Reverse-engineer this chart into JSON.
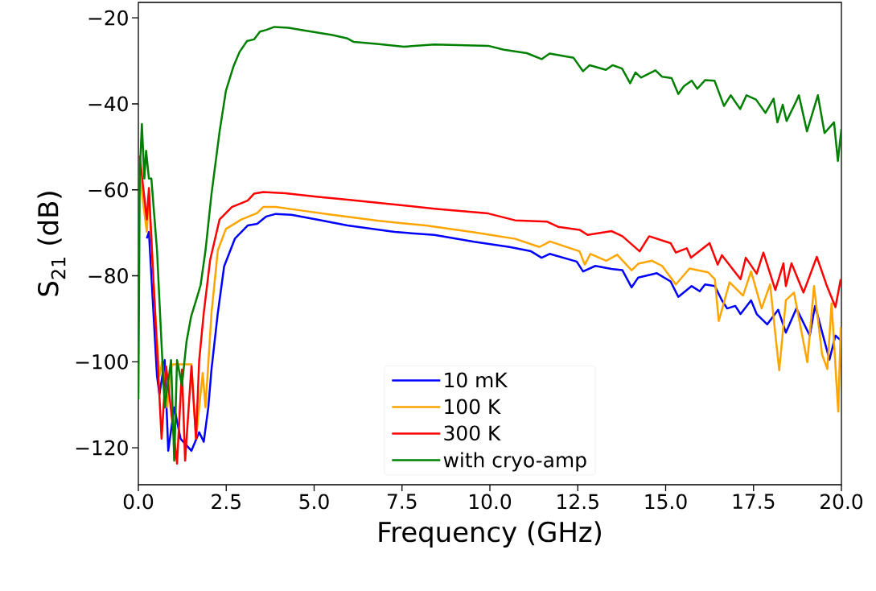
{
  "chart_data": {
    "type": "line",
    "xlabel": "Frequency (GHz)",
    "ylabel": "S$_{21}$ (dB)",
    "xlim": [
      0,
      20
    ],
    "ylim": [
      -128.6,
      -16.4
    ],
    "xticks": [
      {
        "value": 0,
        "label": "0.0"
      },
      {
        "value": 2.5,
        "label": "2.5"
      },
      {
        "value": 5,
        "label": "5.0"
      },
      {
        "value": 7.5,
        "label": "7.5"
      },
      {
        "value": 10,
        "label": "10.0"
      },
      {
        "value": 12.5,
        "label": "12.5"
      },
      {
        "value": 15,
        "label": "15.0"
      },
      {
        "value": 17.5,
        "label": "17.5"
      },
      {
        "value": 20,
        "label": "20.0"
      }
    ],
    "yticks": [
      {
        "value": -120,
        "label": "−120"
      },
      {
        "value": -100,
        "label": "−100"
      },
      {
        "value": -80,
        "label": "−80"
      },
      {
        "value": -60,
        "label": "−60"
      },
      {
        "value": -40,
        "label": "−40"
      },
      {
        "value": -20,
        "label": "−20"
      }
    ],
    "legend": "bottom",
    "line_style": "solid",
    "series": [
      {
        "name": "10 mK",
        "color": "#0000ff",
        "x": [
          0.24,
          0.3,
          0.53,
          0.6,
          0.75,
          0.85,
          1.02,
          1.2,
          1.51,
          1.73,
          1.86,
          1.99,
          2.08,
          2.26,
          2.44,
          2.75,
          3.11,
          3.38,
          3.64,
          3.91,
          4.35,
          5.06,
          5.95,
          7.29,
          8.42,
          9.55,
          10.56,
          11.17,
          11.47,
          11.7,
          12.47,
          12.65,
          13.0,
          13.46,
          13.77,
          14.03,
          14.22,
          14.75,
          15.14,
          15.36,
          15.74,
          15.97,
          16.12,
          16.4,
          16.6,
          16.75,
          16.98,
          17.13,
          17.43,
          17.59,
          17.89,
          18.2,
          18.42,
          18.72,
          19.1,
          19.25,
          19.66,
          19.83,
          19.98
        ],
        "values": [
          -71.3,
          -69.8,
          -103.3,
          -107.6,
          -99.6,
          -120.7,
          -110.6,
          -117.9,
          -120.7,
          -116.4,
          -118.6,
          -110.6,
          -101.8,
          -88.7,
          -77.8,
          -71.3,
          -68.3,
          -67.9,
          -66.2,
          -65.6,
          -65.8,
          -66.9,
          -68.3,
          -69.8,
          -70.5,
          -72.1,
          -73.3,
          -74.3,
          -75.8,
          -74.9,
          -76.7,
          -79,
          -77.7,
          -78.4,
          -78.7,
          -82.7,
          -80.4,
          -79.4,
          -81.3,
          -84.9,
          -82.4,
          -83.6,
          -82,
          -82.4,
          -85.7,
          -87.6,
          -87,
          -88.9,
          -85.7,
          -88.9,
          -91.3,
          -87.9,
          -93.2,
          -87.6,
          -93.9,
          -87,
          -99.5,
          -93.9,
          -95
        ]
      },
      {
        "name": "100 K",
        "color": "#ffa500",
        "x": [
          0.04,
          0.24,
          0.3,
          0.48,
          0.6,
          0.68,
          0.82,
          0.95,
          1.51,
          1.64,
          1.83,
          1.91,
          2.08,
          2.26,
          2.49,
          2.93,
          3.38,
          3.55,
          3.91,
          4.62,
          5.51,
          6.84,
          8.17,
          9.55,
          10.72,
          11.41,
          11.71,
          12.55,
          12.7,
          12.86,
          13.31,
          13.62,
          14.03,
          14.22,
          14.61,
          14.9,
          15.29,
          15.68,
          16.21,
          16.4,
          16.51,
          16.82,
          17.2,
          17.43,
          17.73,
          17.97,
          18.23,
          18.42,
          18.65,
          19.03,
          19.22,
          19.45,
          19.6,
          19.72,
          19.91,
          19.98
        ],
        "values": [
          -56.7,
          -69.8,
          -61,
          -88.7,
          -103.3,
          -100,
          -110.6,
          -100.6,
          -100.6,
          -117.9,
          -102.6,
          -110.6,
          -88.7,
          -74.1,
          -69.1,
          -66.9,
          -65.4,
          -64,
          -64,
          -64.8,
          -65.8,
          -67.2,
          -68.3,
          -69.9,
          -71.4,
          -73.3,
          -72,
          -74.3,
          -77.4,
          -74.9,
          -76.5,
          -75.1,
          -78.7,
          -77.2,
          -76.5,
          -77.7,
          -82,
          -78.3,
          -79.2,
          -80.8,
          -90.5,
          -81.5,
          -84.6,
          -79,
          -87.6,
          -82,
          -102,
          -85.7,
          -83.9,
          -100.1,
          -82.4,
          -98.3,
          -101.7,
          -86.4,
          -111.6,
          -92
        ]
      },
      {
        "name": "300 K",
        "color": "#ff0000",
        "x": [
          0.04,
          0.13,
          0.24,
          0.3,
          0.43,
          0.57,
          0.66,
          0.79,
          1.1,
          1.24,
          1.33,
          1.51,
          1.64,
          1.73,
          1.86,
          2.04,
          2.31,
          2.66,
          3.11,
          3.29,
          3.55,
          4.18,
          5.06,
          5.95,
          7.29,
          8.42,
          9.95,
          10.72,
          11.63,
          11.94,
          12.55,
          12.78,
          13.46,
          13.77,
          14.26,
          14.53,
          15.14,
          15.29,
          15.6,
          15.72,
          16.25,
          16.48,
          16.6,
          17.13,
          17.28,
          17.59,
          17.78,
          18.12,
          18.35,
          18.42,
          18.58,
          18.92,
          19.3,
          19.57,
          19.83,
          19.98
        ],
        "values": [
          -52,
          -58.9,
          -66.9,
          -59.6,
          -81.4,
          -103.3,
          -117.9,
          -101.1,
          -123.7,
          -101.8,
          -123,
          -101,
          -117.9,
          -99.7,
          -88.7,
          -76.4,
          -66.9,
          -64,
          -62.5,
          -60.9,
          -60.5,
          -60.8,
          -61.6,
          -62.3,
          -63.4,
          -64.4,
          -65.5,
          -67.1,
          -67.4,
          -68.6,
          -69.3,
          -70.5,
          -69.6,
          -70.8,
          -74.3,
          -70.8,
          -72.4,
          -74.6,
          -73.6,
          -75.8,
          -72.4,
          -77.4,
          -75.2,
          -80.8,
          -75.8,
          -79.5,
          -74.6,
          -83.3,
          -77.1,
          -82.4,
          -77.1,
          -83.9,
          -75.6,
          -82,
          -87.3,
          -80.8
        ]
      },
      {
        "name": "with cryo-amp",
        "color": "#008000",
        "x": [
          0.0,
          0.04,
          0.1,
          0.17,
          0.22,
          0.3,
          0.37,
          0.53,
          0.66,
          0.75,
          0.93,
          1.02,
          1.1,
          1.24,
          1.37,
          1.5,
          1.64,
          1.77,
          1.91,
          2.08,
          2.31,
          2.49,
          2.71,
          2.88,
          3.09,
          3.29,
          3.46,
          3.64,
          3.87,
          4.27,
          4.71,
          5.52,
          5.95,
          6.13,
          6.84,
          7.55,
          8.42,
          9.95,
          10.4,
          11.05,
          11.47,
          11.7,
          12.38,
          12.65,
          12.84,
          13.3,
          13.49,
          13.76,
          13.99,
          14.14,
          14.3,
          14.71,
          14.9,
          15.17,
          15.36,
          15.52,
          15.74,
          15.9,
          16.12,
          16.39,
          16.66,
          16.85,
          17.12,
          17.3,
          17.57,
          17.84,
          18.07,
          18.18,
          18.33,
          18.44,
          18.72,
          18.79,
          19.02,
          19.33,
          19.52,
          19.79,
          19.9,
          20.0
        ],
        "values": [
          -108.8,
          -56,
          -44.7,
          -57.4,
          -50.9,
          -57.4,
          -57.4,
          -74,
          -96,
          -110.6,
          -99.6,
          -123,
          -99.6,
          -105.5,
          -95.3,
          -89.5,
          -85.8,
          -82.2,
          -74.1,
          -61,
          -46.5,
          -37,
          -31.2,
          -27.9,
          -25.4,
          -25,
          -23.2,
          -22.8,
          -22.1,
          -22.3,
          -22.9,
          -24,
          -24.8,
          -25.6,
          -26.1,
          -26.7,
          -26.2,
          -26.5,
          -27.4,
          -28.2,
          -29.6,
          -28.3,
          -29.3,
          -32.4,
          -31,
          -32.1,
          -31,
          -31.8,
          -35.2,
          -32.7,
          -33.9,
          -32.2,
          -33.7,
          -34,
          -37.7,
          -35.9,
          -34.6,
          -36.5,
          -34.5,
          -34.6,
          -40.5,
          -38,
          -41.2,
          -38,
          -39,
          -42.1,
          -38.8,
          -44.3,
          -40.2,
          -44,
          -39.3,
          -38,
          -46.4,
          -38,
          -46.8,
          -44.3,
          -53.3,
          -45.8
        ]
      }
    ]
  }
}
